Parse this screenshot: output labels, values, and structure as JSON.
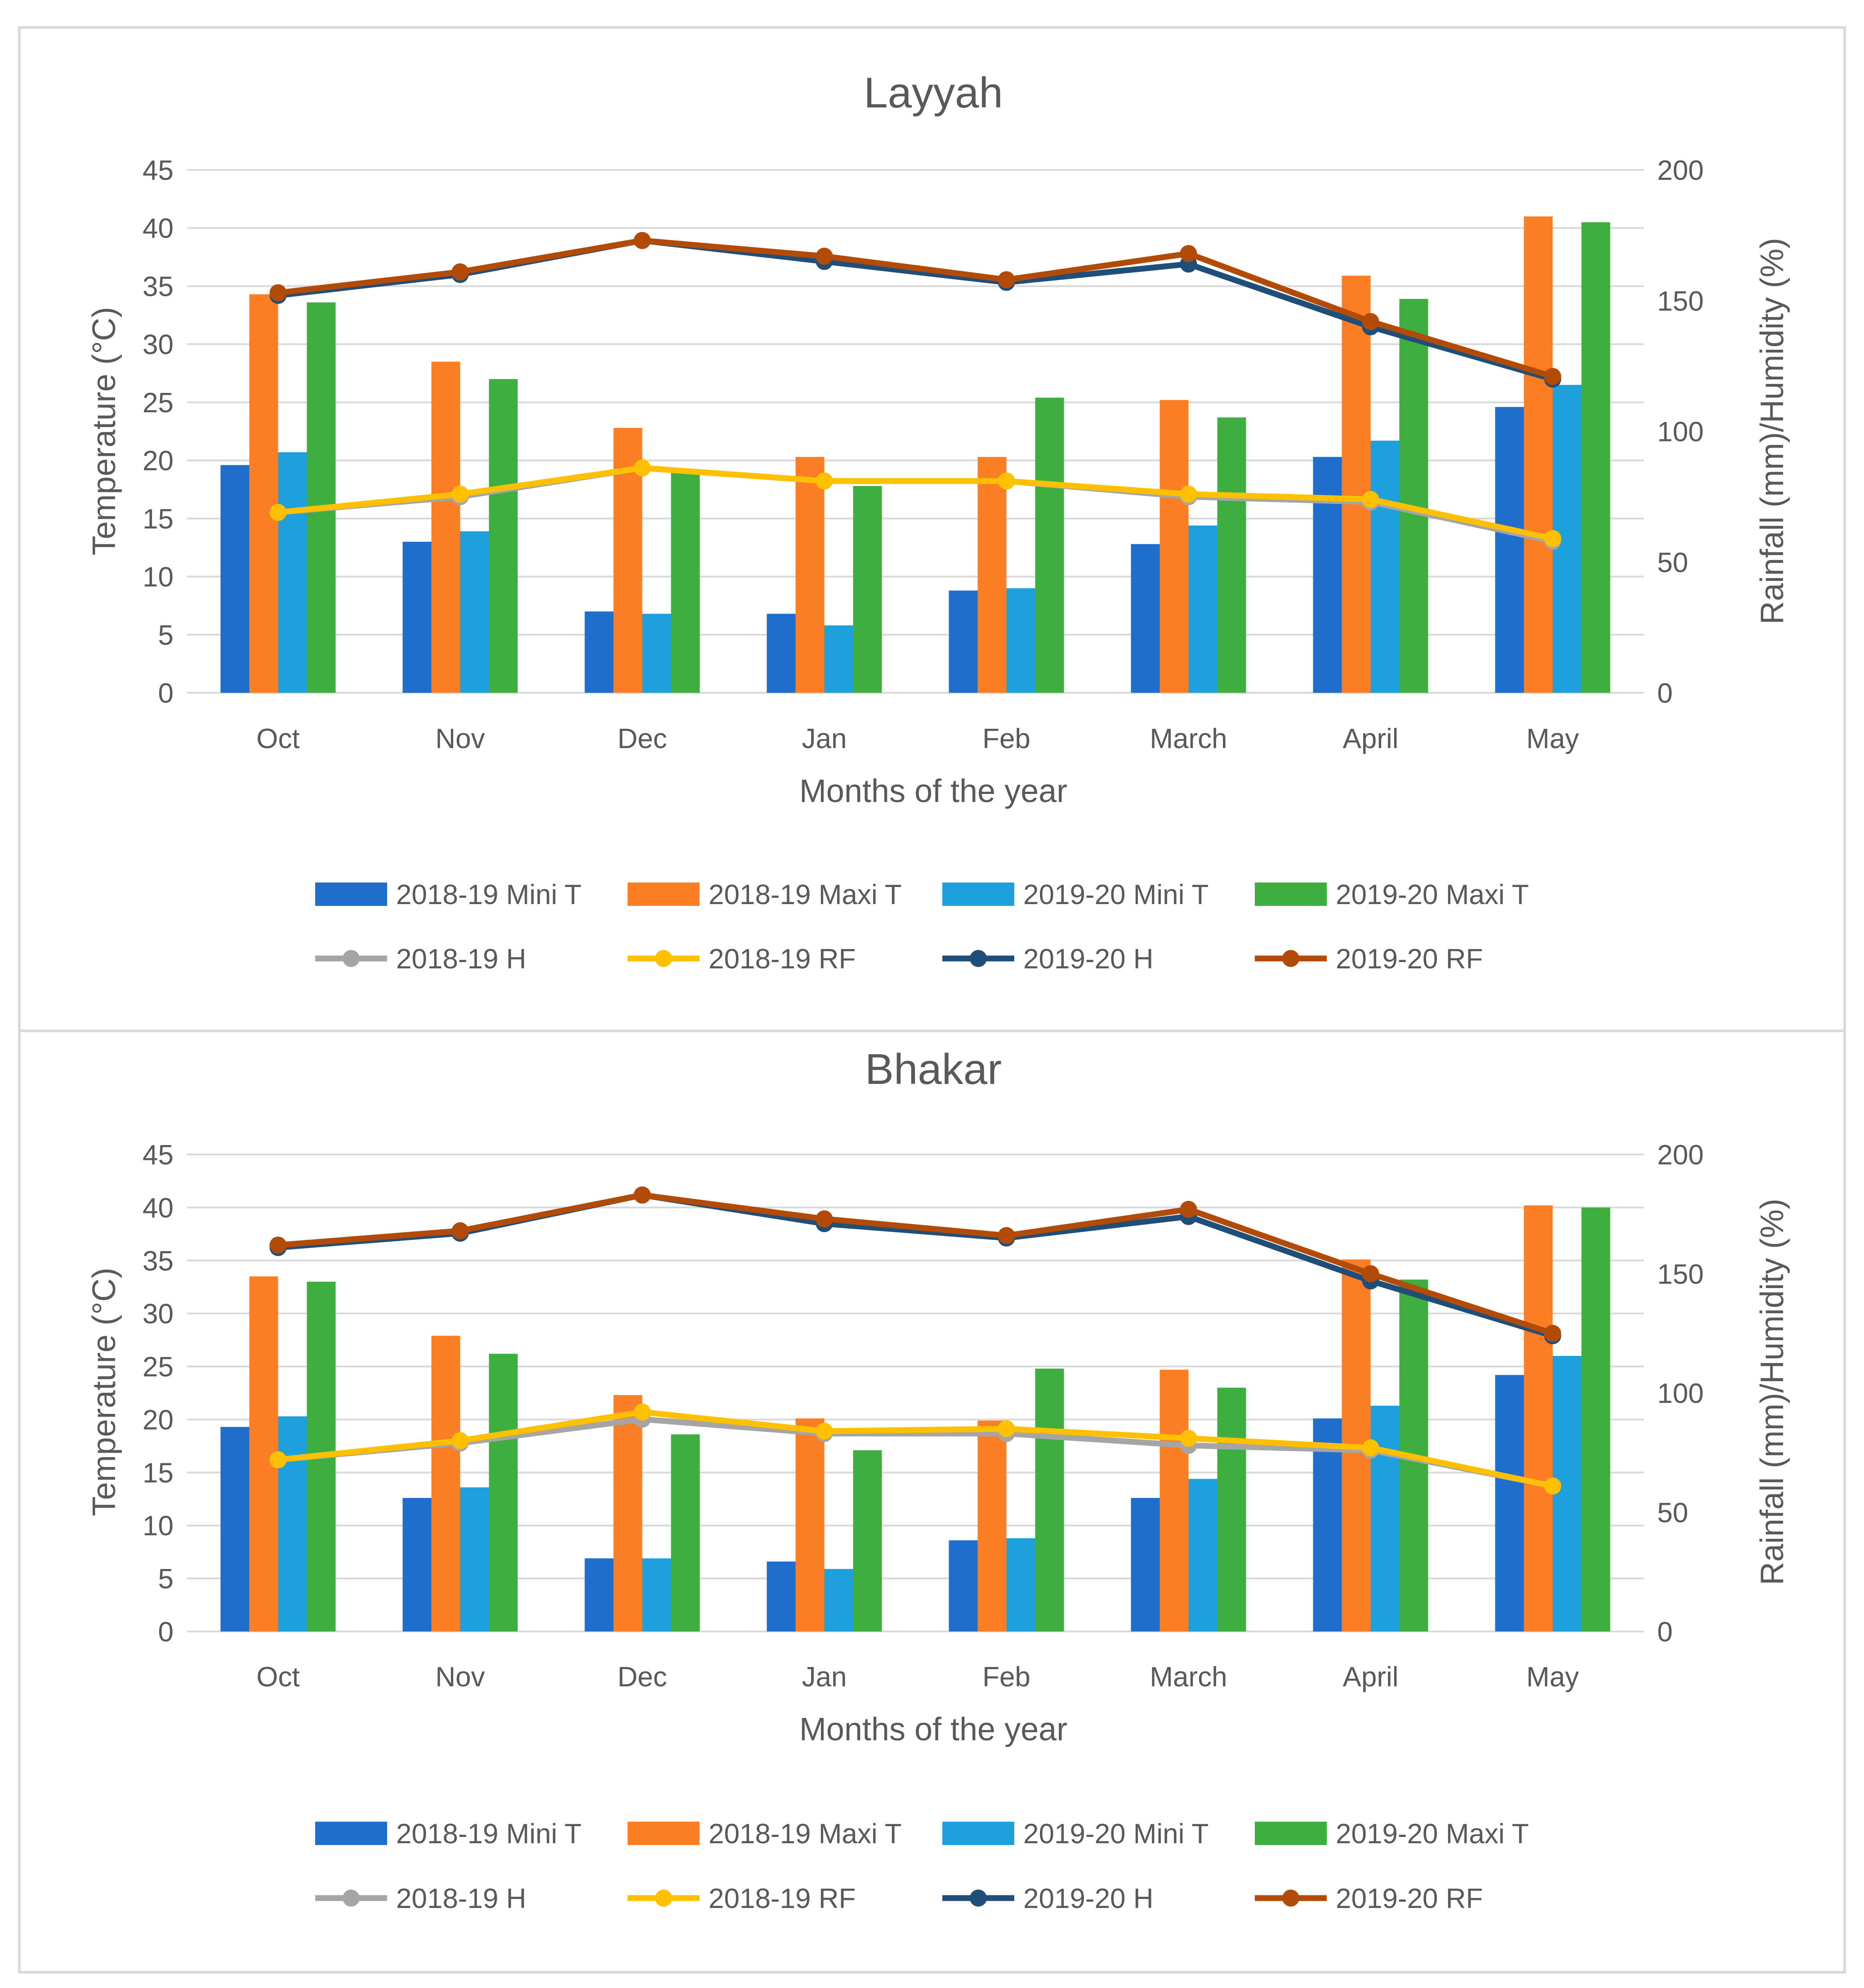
{
  "colors": {
    "mini_t_2018": "#1f6ecc",
    "maxi_t_2018": "#fb7d24",
    "mini_t_2019": "#1ea0dc",
    "maxi_t_2019": "#3dae3f",
    "h_2018": "#a5a5a5",
    "rf_2018": "#ffc000",
    "h_2019": "#1f4e79",
    "rf_2019": "#b24a08",
    "grid": "#d9d9d9",
    "text": "#595959"
  },
  "chart_data": [
    {
      "type": "bar",
      "title": "Layyah",
      "xlabel": "Months of the year",
      "ylabel": "Temperature (°C)",
      "y2label": "Rainfall (mm)/Humidity (%)",
      "ylim": [
        0,
        45
      ],
      "y2lim": [
        0,
        200
      ],
      "yticks": [
        "0",
        "5",
        "10",
        "15",
        "20",
        "25",
        "30",
        "35",
        "40",
        "45"
      ],
      "y2ticks": [
        "0",
        "50",
        "100",
        "150",
        "200"
      ],
      "categories": [
        "Oct",
        "Nov",
        "Dec",
        "Jan",
        "Feb",
        "March",
        "April",
        "May"
      ],
      "bar_series": [
        {
          "name": "2018-19 Mini T",
          "color_key": "mini_t_2018",
          "values": [
            19.6,
            13.0,
            7.0,
            6.8,
            8.8,
            12.8,
            20.3,
            24.6
          ]
        },
        {
          "name": "2018-19 Maxi T",
          "color_key": "maxi_t_2018",
          "values": [
            34.3,
            28.5,
            22.8,
            20.3,
            20.3,
            25.2,
            35.9,
            41.0
          ]
        },
        {
          "name": "2019-20 Mini T",
          "color_key": "mini_t_2019",
          "values": [
            20.7,
            13.9,
            6.8,
            5.8,
            9.0,
            14.4,
            21.7,
            26.5
          ]
        },
        {
          "name": "2019-20 Maxi T",
          "color_key": "maxi_t_2019",
          "values": [
            33.6,
            27.0,
            19.2,
            17.8,
            25.4,
            23.7,
            33.9,
            40.5
          ]
        }
      ],
      "line_series": [
        {
          "name": "2018-19 H",
          "color_key": "h_2018",
          "values": [
            69,
            75,
            86,
            81,
            81,
            75,
            73,
            58
          ]
        },
        {
          "name": "2018-19 RF",
          "color_key": "rf_2018",
          "values": [
            69,
            76,
            86,
            81,
            81,
            76,
            74,
            59
          ]
        },
        {
          "name": "2019-20 H",
          "color_key": "h_2019",
          "values": [
            152,
            160,
            173,
            165,
            157,
            164,
            140,
            120
          ]
        },
        {
          "name": "2019-20 RF",
          "color_key": "rf_2019",
          "values": [
            153,
            161,
            173,
            167,
            158,
            168,
            142,
            121
          ]
        }
      ]
    },
    {
      "type": "bar",
      "title": "Bhakar",
      "xlabel": "Months of the year",
      "ylabel": "Temperature (°C)",
      "y2label": "Rainfall (mm)/Humidity (%)",
      "ylim": [
        0,
        45
      ],
      "y2lim": [
        0,
        200
      ],
      "yticks": [
        "0",
        "5",
        "10",
        "15",
        "20",
        "25",
        "30",
        "35",
        "40",
        "45"
      ],
      "y2ticks": [
        "0",
        "50",
        "100",
        "150",
        "200"
      ],
      "categories": [
        "Oct",
        "Nov",
        "Dec",
        "Jan",
        "Feb",
        "March",
        "April",
        "May"
      ],
      "bar_series": [
        {
          "name": "2018-19 Mini T",
          "color_key": "mini_t_2018",
          "values": [
            19.3,
            12.6,
            6.9,
            6.6,
            8.6,
            12.6,
            20.1,
            24.2
          ]
        },
        {
          "name": "2018-19 Maxi T",
          "color_key": "maxi_t_2018",
          "values": [
            33.5,
            27.9,
            22.3,
            20.1,
            19.9,
            24.7,
            35.1,
            40.2
          ]
        },
        {
          "name": "2019-20 Mini T",
          "color_key": "mini_t_2019",
          "values": [
            20.3,
            13.6,
            6.9,
            5.9,
            8.8,
            14.4,
            21.3,
            26.0
          ]
        },
        {
          "name": "2019-20 Maxi T",
          "color_key": "maxi_t_2019",
          "values": [
            33.0,
            26.2,
            18.6,
            17.1,
            24.8,
            23.0,
            33.2,
            40.0
          ]
        }
      ],
      "line_series": [
        {
          "name": "2018-19 H",
          "color_key": "h_2018",
          "values": [
            72,
            79,
            89,
            83,
            83,
            78,
            76,
            61
          ]
        },
        {
          "name": "2018-19 RF",
          "color_key": "rf_2018",
          "values": [
            72,
            80,
            92,
            84,
            85,
            81,
            77,
            61
          ]
        },
        {
          "name": "2019-20 H",
          "color_key": "h_2019",
          "values": [
            161,
            167,
            183,
            171,
            165,
            174,
            147,
            124
          ]
        },
        {
          "name": "2019-20 RF",
          "color_key": "rf_2019",
          "values": [
            162,
            168,
            183,
            173,
            166,
            177,
            150,
            125
          ]
        }
      ]
    }
  ]
}
